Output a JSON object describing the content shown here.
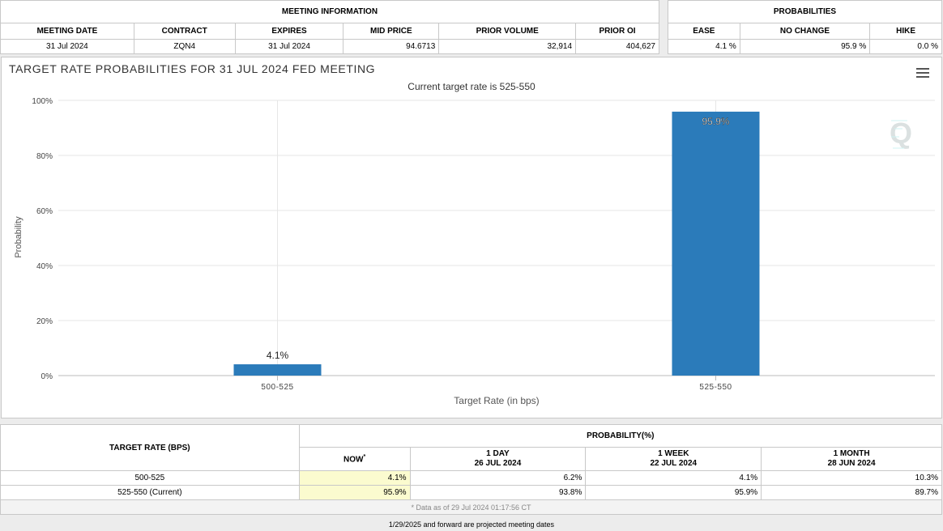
{
  "meeting_info": {
    "group_label": "MEETING INFORMATION",
    "headers": [
      "MEETING DATE",
      "CONTRACT",
      "EXPIRES",
      "MID PRICE",
      "PRIOR VOLUME",
      "PRIOR OI"
    ],
    "row": [
      "31 Jul 2024",
      "ZQN4",
      "31 Jul 2024",
      "94.6713",
      "32,914",
      "404,627"
    ]
  },
  "probabilities": {
    "group_label": "PROBABILITIES",
    "headers": [
      "EASE",
      "NO CHANGE",
      "HIKE"
    ],
    "row": [
      "4.1 %",
      "95.9 %",
      "0.0 %"
    ]
  },
  "chart_data": {
    "type": "bar",
    "title": "TARGET RATE PROBABILITIES FOR 31 JUL 2024 FED MEETING",
    "subtitle": "Current target rate is 525-550",
    "categories": [
      "500-525",
      "525-550"
    ],
    "values": [
      4.1,
      95.9
    ],
    "data_labels": [
      "4.1%",
      "95.9%"
    ],
    "xlabel": "Target Rate (in bps)",
    "ylabel": "Probability",
    "ylim": [
      0,
      100
    ],
    "y_ticks": [
      "0%",
      "20%",
      "40%",
      "60%",
      "80%",
      "100%"
    ],
    "y_tick_values": [
      0,
      20,
      40,
      60,
      80,
      100
    ],
    "bar_color": "#2b7bba",
    "grid": true
  },
  "rate_table": {
    "col_header": "TARGET RATE (BPS)",
    "group_label": "PROBABILITY(%)",
    "now_label": "NOW",
    "now_mark": "*",
    "columns": [
      {
        "label": "1 DAY",
        "date": "26 JUL 2024"
      },
      {
        "label": "1 WEEK",
        "date": "22 JUL 2024"
      },
      {
        "label": "1 MONTH",
        "date": "28 JUN 2024"
      }
    ],
    "rows": [
      {
        "rate": "500-525",
        "now": "4.1%",
        "values": [
          "6.2%",
          "4.1%",
          "10.3%"
        ]
      },
      {
        "rate": "525-550 (Current)",
        "now": "95.9%",
        "values": [
          "93.8%",
          "95.9%",
          "89.7%"
        ]
      }
    ],
    "note": "* Data as of 29 Jul 2024 01:17:56 CT"
  },
  "footer": "1/29/2025 and forward are projected meeting dates"
}
